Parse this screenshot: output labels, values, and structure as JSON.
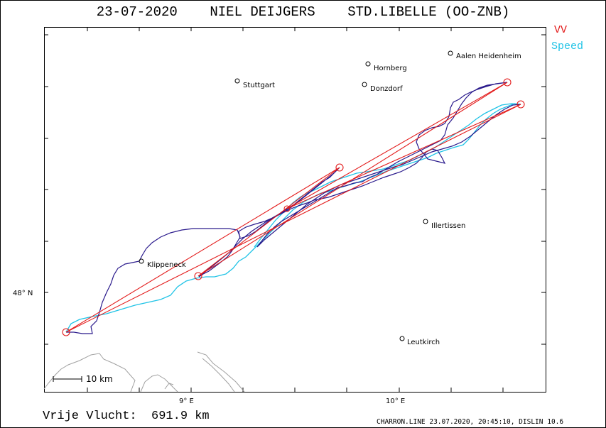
{
  "header": {
    "title": "23-07-2020    NIEL DEIJGERS    STD.LIBELLE (OO-ZNB)"
  },
  "legend": {
    "vv": "VV",
    "speed": "Speed"
  },
  "axes": {
    "lat_label": "48° N",
    "lon_labels": [
      "9° E",
      "10° E"
    ]
  },
  "scale": {
    "label": "10 km"
  },
  "places": [
    {
      "name": "Aalen Heidenheim"
    },
    {
      "name": "Hornberg"
    },
    {
      "name": "Stuttgart"
    },
    {
      "name": "Donzdorf"
    },
    {
      "name": "Illertissen"
    },
    {
      "name": "Klippeneck"
    },
    {
      "name": "Leutkirch"
    }
  ],
  "footer": {
    "distance": "Vrije Vlucht:  691.9 km",
    "credits": "CHARRON.LINE 23.07.2020, 20:45:10, DISLIN 10.6"
  },
  "colors": {
    "track": "#2a1a8c",
    "speed": "#1fc3e6",
    "task": "#e31b1b",
    "lake": "#a0a0a0"
  }
}
